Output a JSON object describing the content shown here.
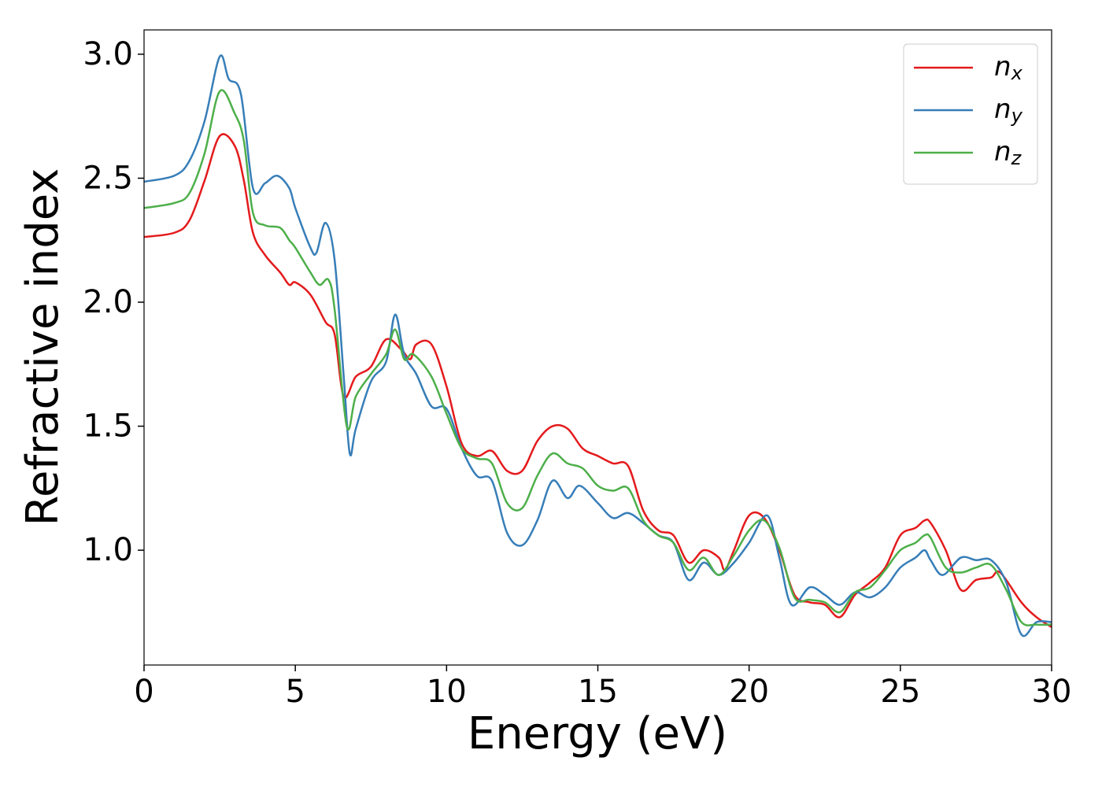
{
  "chart_data": {
    "type": "line",
    "x_label": "Energy (eV)",
    "y_label": "Refractive index",
    "xlim": [
      0,
      30
    ],
    "ylim": [
      0.537,
      3.098
    ],
    "xticks": [
      0,
      5,
      10,
      15,
      20,
      25,
      30
    ],
    "yticks": [
      {
        "value": 1.0,
        "label": "1.0"
      },
      {
        "value": 1.5,
        "label": "1.5"
      },
      {
        "value": 2.0,
        "label": "2.0"
      },
      {
        "value": 2.5,
        "label": "2.5"
      },
      {
        "value": 3.0,
        "label": "3.0"
      }
    ],
    "grid": false,
    "legend": "upper right",
    "series": [
      {
        "name": "nx",
        "color": "#e41a1c",
        "x": [
          0,
          1,
          1.5,
          2,
          2.5,
          3,
          3.3,
          3.6,
          4,
          4.5,
          4.8,
          5,
          5.5,
          6,
          6.3,
          6.6,
          7,
          7.5,
          8,
          8.5,
          8.8,
          9,
          9.5,
          10,
          10.5,
          11,
          11.5,
          12,
          12.5,
          13,
          13.5,
          14,
          14.5,
          15,
          15.5,
          16,
          16.5,
          17,
          17.5,
          18,
          18.5,
          19,
          19.2,
          19.5,
          20,
          20.5,
          21,
          21.5,
          22,
          22.5,
          23,
          23.5,
          24,
          24.5,
          25,
          25.5,
          25.8,
          26,
          26.5,
          27,
          27.5,
          28,
          28.3,
          29,
          29.5,
          30
        ],
        "values": [
          2.263,
          2.28,
          2.33,
          2.49,
          2.67,
          2.63,
          2.49,
          2.28,
          2.19,
          2.12,
          2.07,
          2.08,
          2.03,
          1.92,
          1.87,
          1.62,
          1.7,
          1.74,
          1.85,
          1.81,
          1.77,
          1.83,
          1.83,
          1.66,
          1.43,
          1.38,
          1.4,
          1.32,
          1.32,
          1.44,
          1.5,
          1.49,
          1.41,
          1.38,
          1.35,
          1.34,
          1.16,
          1.08,
          1.06,
          0.95,
          1.0,
          0.97,
          0.92,
          1.0,
          1.14,
          1.13,
          1.0,
          0.82,
          0.79,
          0.78,
          0.73,
          0.82,
          0.87,
          0.93,
          1.06,
          1.09,
          1.12,
          1.11,
          1.0,
          0.84,
          0.88,
          0.89,
          0.91,
          0.79,
          0.73,
          0.69
        ]
      },
      {
        "name": "ny",
        "color": "#377eb8",
        "x": [
          0,
          1,
          1.5,
          2,
          2.5,
          2.8,
          3.2,
          3.6,
          4,
          4.4,
          4.8,
          5,
          5.5,
          5.7,
          6,
          6.3,
          6.6,
          6.8,
          7,
          7.5,
          8,
          8.3,
          8.6,
          9,
          9.5,
          10,
          10.5,
          11,
          11.5,
          12,
          12.5,
          13,
          13.5,
          14,
          14.4,
          15,
          15.5,
          16,
          16.5,
          17,
          17.5,
          18,
          18.5,
          19,
          19.5,
          20,
          20.6,
          21,
          21.4,
          22,
          22.5,
          23,
          23.5,
          24,
          24.5,
          25,
          25.5,
          25.8,
          26,
          26.4,
          27,
          27.5,
          28,
          28.5,
          29,
          29.5,
          30
        ],
        "values": [
          2.486,
          2.51,
          2.57,
          2.73,
          2.99,
          2.9,
          2.84,
          2.46,
          2.48,
          2.51,
          2.46,
          2.38,
          2.22,
          2.2,
          2.32,
          2.17,
          1.7,
          1.39,
          1.49,
          1.68,
          1.76,
          1.95,
          1.79,
          1.71,
          1.58,
          1.57,
          1.41,
          1.3,
          1.28,
          1.07,
          1.02,
          1.12,
          1.28,
          1.21,
          1.26,
          1.19,
          1.13,
          1.15,
          1.11,
          1.06,
          1.03,
          0.88,
          0.95,
          0.9,
          0.95,
          1.03,
          1.14,
          0.97,
          0.78,
          0.85,
          0.82,
          0.78,
          0.83,
          0.81,
          0.85,
          0.93,
          0.97,
          1.0,
          0.96,
          0.9,
          0.97,
          0.96,
          0.96,
          0.87,
          0.66,
          0.71,
          0.71
        ]
      },
      {
        "name": "nz",
        "color": "#4daf4a",
        "x": [
          0,
          1,
          1.5,
          2,
          2.5,
          3,
          3.3,
          3.6,
          4,
          4.5,
          4.8,
          5,
          5.5,
          5.8,
          6.1,
          6.3,
          6.7,
          7,
          7.5,
          8,
          8.3,
          8.6,
          8.9,
          9.5,
          10,
          10.5,
          11,
          11.5,
          12,
          12.5,
          13,
          13.5,
          14,
          14.5,
          15,
          15.5,
          16,
          16.5,
          17,
          17.5,
          18,
          18.5,
          19,
          19.5,
          20,
          20.5,
          21,
          21.5,
          22,
          22.5,
          23,
          23.5,
          24,
          24.5,
          25,
          25.5,
          25.8,
          26,
          26.5,
          27,
          27.5,
          28,
          28.5,
          29,
          29.5,
          30
        ],
        "values": [
          2.38,
          2.4,
          2.44,
          2.6,
          2.85,
          2.76,
          2.65,
          2.36,
          2.31,
          2.3,
          2.25,
          2.22,
          2.12,
          2.07,
          2.09,
          1.97,
          1.5,
          1.62,
          1.71,
          1.79,
          1.89,
          1.77,
          1.79,
          1.7,
          1.55,
          1.41,
          1.37,
          1.35,
          1.19,
          1.17,
          1.3,
          1.39,
          1.35,
          1.33,
          1.26,
          1.24,
          1.25,
          1.12,
          1.06,
          1.03,
          0.92,
          0.97,
          0.9,
          0.98,
          1.08,
          1.12,
          1.01,
          0.81,
          0.8,
          0.79,
          0.75,
          0.83,
          0.85,
          0.92,
          1.0,
          1.03,
          1.06,
          1.05,
          0.93,
          0.91,
          0.93,
          0.94,
          0.84,
          0.71,
          0.7,
          0.7
        ]
      }
    ]
  }
}
